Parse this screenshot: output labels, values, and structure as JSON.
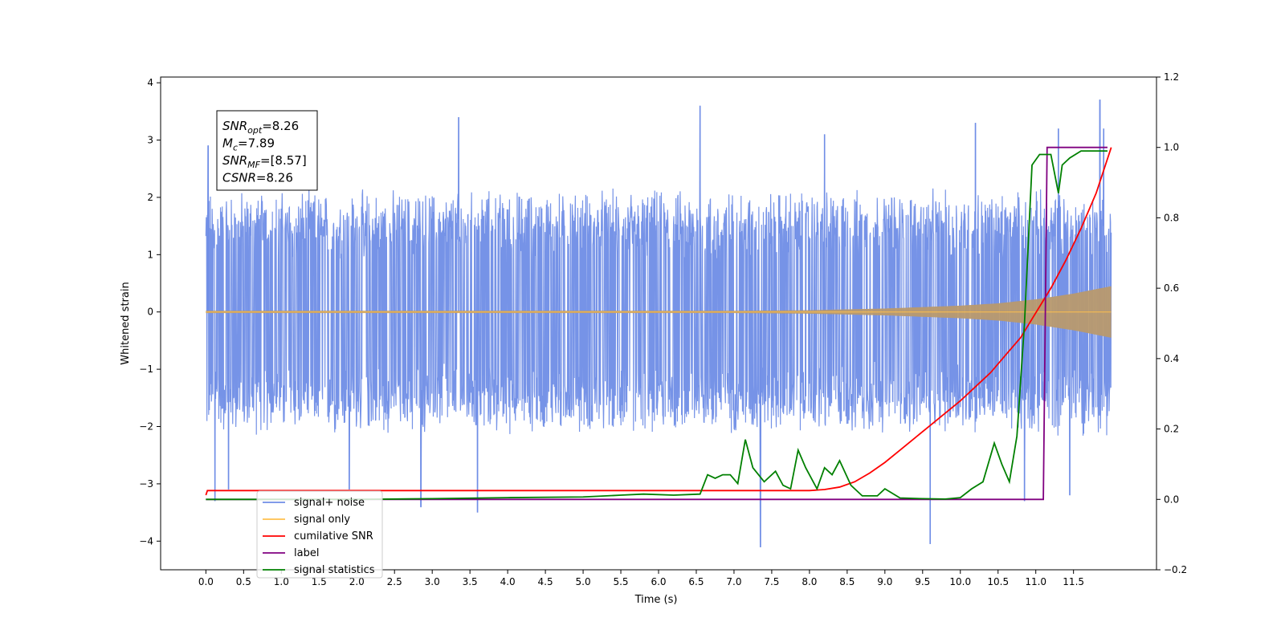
{
  "chart_data": {
    "type": "line",
    "xlabel": "Time (s)",
    "ylabel": "Whitened strain",
    "xlim": [
      -0.6,
      12.6
    ],
    "ylim": [
      -4.5,
      4.1
    ],
    "y2lim": [
      -0.2,
      1.2
    ],
    "x_ticks": [
      0.0,
      0.5,
      1.0,
      1.5,
      2.0,
      2.5,
      3.0,
      3.5,
      4.0,
      4.5,
      5.0,
      5.5,
      6.0,
      6.5,
      7.0,
      7.5,
      8.0,
      8.5,
      9.0,
      9.5,
      10.0,
      10.5,
      11.0,
      11.5
    ],
    "x_tick_labels": [
      "0.0",
      "0.5",
      "1.0",
      "1.5",
      "2.0",
      "2.5",
      "3.0",
      "3.5",
      "4.0",
      "4.5",
      "5.0",
      "5.5",
      "6.0",
      "6.5",
      "7.0",
      "7.5",
      "8.0",
      "8.5",
      "9.0",
      "9.5",
      "10.0",
      "10.5",
      "11.0",
      "11.5"
    ],
    "y_ticks": [
      -4,
      -3,
      -2,
      -1,
      0,
      1,
      2,
      3,
      4
    ],
    "y_tick_labels": [
      "−4",
      "−3",
      "−2",
      "−1",
      "0",
      "1",
      "2",
      "3",
      "4"
    ],
    "y2_ticks": [
      -0.2,
      0.0,
      0.2,
      0.4,
      0.6,
      0.8,
      1.0,
      1.2
    ],
    "y2_tick_labels": [
      "−0.2",
      "0.0",
      "0.2",
      "0.4",
      "0.6",
      "0.8",
      "1.0",
      "1.2"
    ],
    "grid": false,
    "legend_position": "lower-left",
    "annotation_lines": [
      {
        "name": "SNR",
        "sub": "opt",
        "value": "=8.26"
      },
      {
        "name": "M",
        "sub": "c",
        "value": "=7.89"
      },
      {
        "name": "SNR",
        "sub": "MF",
        "value": "=[8.57]"
      },
      {
        "name": "CSNR",
        "sub": "",
        "value": "=8.26"
      }
    ],
    "noise_band": {
      "x_range": [
        0.0,
        12.0
      ],
      "typical_amplitude": 2.0,
      "peaks": [
        {
          "x": 0.03,
          "y": 2.9
        },
        {
          "x": 0.12,
          "y": -3.3
        },
        {
          "x": 0.3,
          "y": -3.1
        },
        {
          "x": 1.9,
          "y": -3.1
        },
        {
          "x": 2.85,
          "y": -3.4
        },
        {
          "x": 3.35,
          "y": 3.4
        },
        {
          "x": 3.6,
          "y": -3.5
        },
        {
          "x": 6.55,
          "y": 3.6
        },
        {
          "x": 7.35,
          "y": -4.1
        },
        {
          "x": 8.2,
          "y": 3.1
        },
        {
          "x": 9.6,
          "y": -4.05
        },
        {
          "x": 10.2,
          "y": 3.3
        },
        {
          "x": 10.85,
          "y": -3.3
        },
        {
          "x": 11.3,
          "y": 3.2
        },
        {
          "x": 11.45,
          "y": -3.2
        },
        {
          "x": 11.85,
          "y": 3.7
        },
        {
          "x": 11.9,
          "y": 3.2
        }
      ]
    },
    "series": [
      {
        "name": "signal+ noise",
        "color": "#6f8de6",
        "axis": "left",
        "description_values": "dense noise band, amplitude ~±2"
      },
      {
        "name": "signal only",
        "color": "#ffc04d",
        "axis": "left",
        "envelope": {
          "x": [
            0.0,
            7.0,
            8.0,
            9.0,
            10.0,
            10.5,
            11.0,
            11.5,
            12.0
          ],
          "amp": [
            0.02,
            0.02,
            0.03,
            0.06,
            0.11,
            0.15,
            0.22,
            0.32,
            0.45
          ]
        }
      },
      {
        "name": "cumilative SNR",
        "color": "#ff0000",
        "axis": "right",
        "x": [
          0.0,
          0.02,
          1.0,
          2.0,
          4.0,
          6.0,
          7.0,
          8.0,
          8.2,
          8.4,
          8.6,
          8.8,
          9.0,
          9.2,
          9.4,
          9.6,
          9.8,
          10.0,
          10.2,
          10.4,
          10.6,
          10.8,
          11.0,
          11.2,
          11.4,
          11.6,
          11.8,
          12.0
        ],
        "values": [
          0.012,
          0.025,
          0.025,
          0.025,
          0.025,
          0.025,
          0.025,
          0.025,
          0.028,
          0.035,
          0.05,
          0.075,
          0.105,
          0.14,
          0.175,
          0.21,
          0.245,
          0.28,
          0.32,
          0.36,
          0.41,
          0.46,
          0.53,
          0.6,
          0.68,
          0.77,
          0.87,
          1.0
        ]
      },
      {
        "name": "label",
        "color": "#800080",
        "axis": "right",
        "x": [
          0.0,
          11.1,
          11.15,
          11.2,
          11.95
        ],
        "values": [
          0.0,
          0.0,
          1.0,
          1.0,
          1.0
        ]
      },
      {
        "name": "signal statistics",
        "color": "#008000",
        "axis": "right",
        "x": [
          0.0,
          2.0,
          3.0,
          4.0,
          5.0,
          5.5,
          5.8,
          6.2,
          6.55,
          6.65,
          6.75,
          6.85,
          6.95,
          7.05,
          7.15,
          7.25,
          7.4,
          7.55,
          7.65,
          7.75,
          7.85,
          7.95,
          8.1,
          8.2,
          8.3,
          8.4,
          8.55,
          8.7,
          8.9,
          9.0,
          9.2,
          9.5,
          9.8,
          10.0,
          10.15,
          10.3,
          10.45,
          10.55,
          10.65,
          10.75,
          10.85,
          10.95,
          11.05,
          11.2,
          11.3,
          11.35,
          11.45,
          11.6,
          11.75,
          11.95
        ],
        "values": [
          0.0,
          0.0,
          0.002,
          0.005,
          0.007,
          0.012,
          0.015,
          0.012,
          0.015,
          0.07,
          0.06,
          0.07,
          0.07,
          0.045,
          0.17,
          0.09,
          0.05,
          0.08,
          0.04,
          0.03,
          0.14,
          0.09,
          0.03,
          0.09,
          0.07,
          0.11,
          0.04,
          0.01,
          0.01,
          0.03,
          0.004,
          0.002,
          0.001,
          0.005,
          0.03,
          0.05,
          0.16,
          0.1,
          0.05,
          0.18,
          0.5,
          0.95,
          0.98,
          0.98,
          0.87,
          0.95,
          0.97,
          0.99,
          0.99,
          0.99
        ]
      }
    ],
    "legend": [
      {
        "label": "signal+ noise",
        "color": "#6f8de6"
      },
      {
        "label": "signal only",
        "color": "#ffc04d"
      },
      {
        "label": "cumilative SNR",
        "color": "#ff0000"
      },
      {
        "label": "label",
        "color": "#800080"
      },
      {
        "label": "signal statistics",
        "color": "#008000"
      }
    ]
  }
}
